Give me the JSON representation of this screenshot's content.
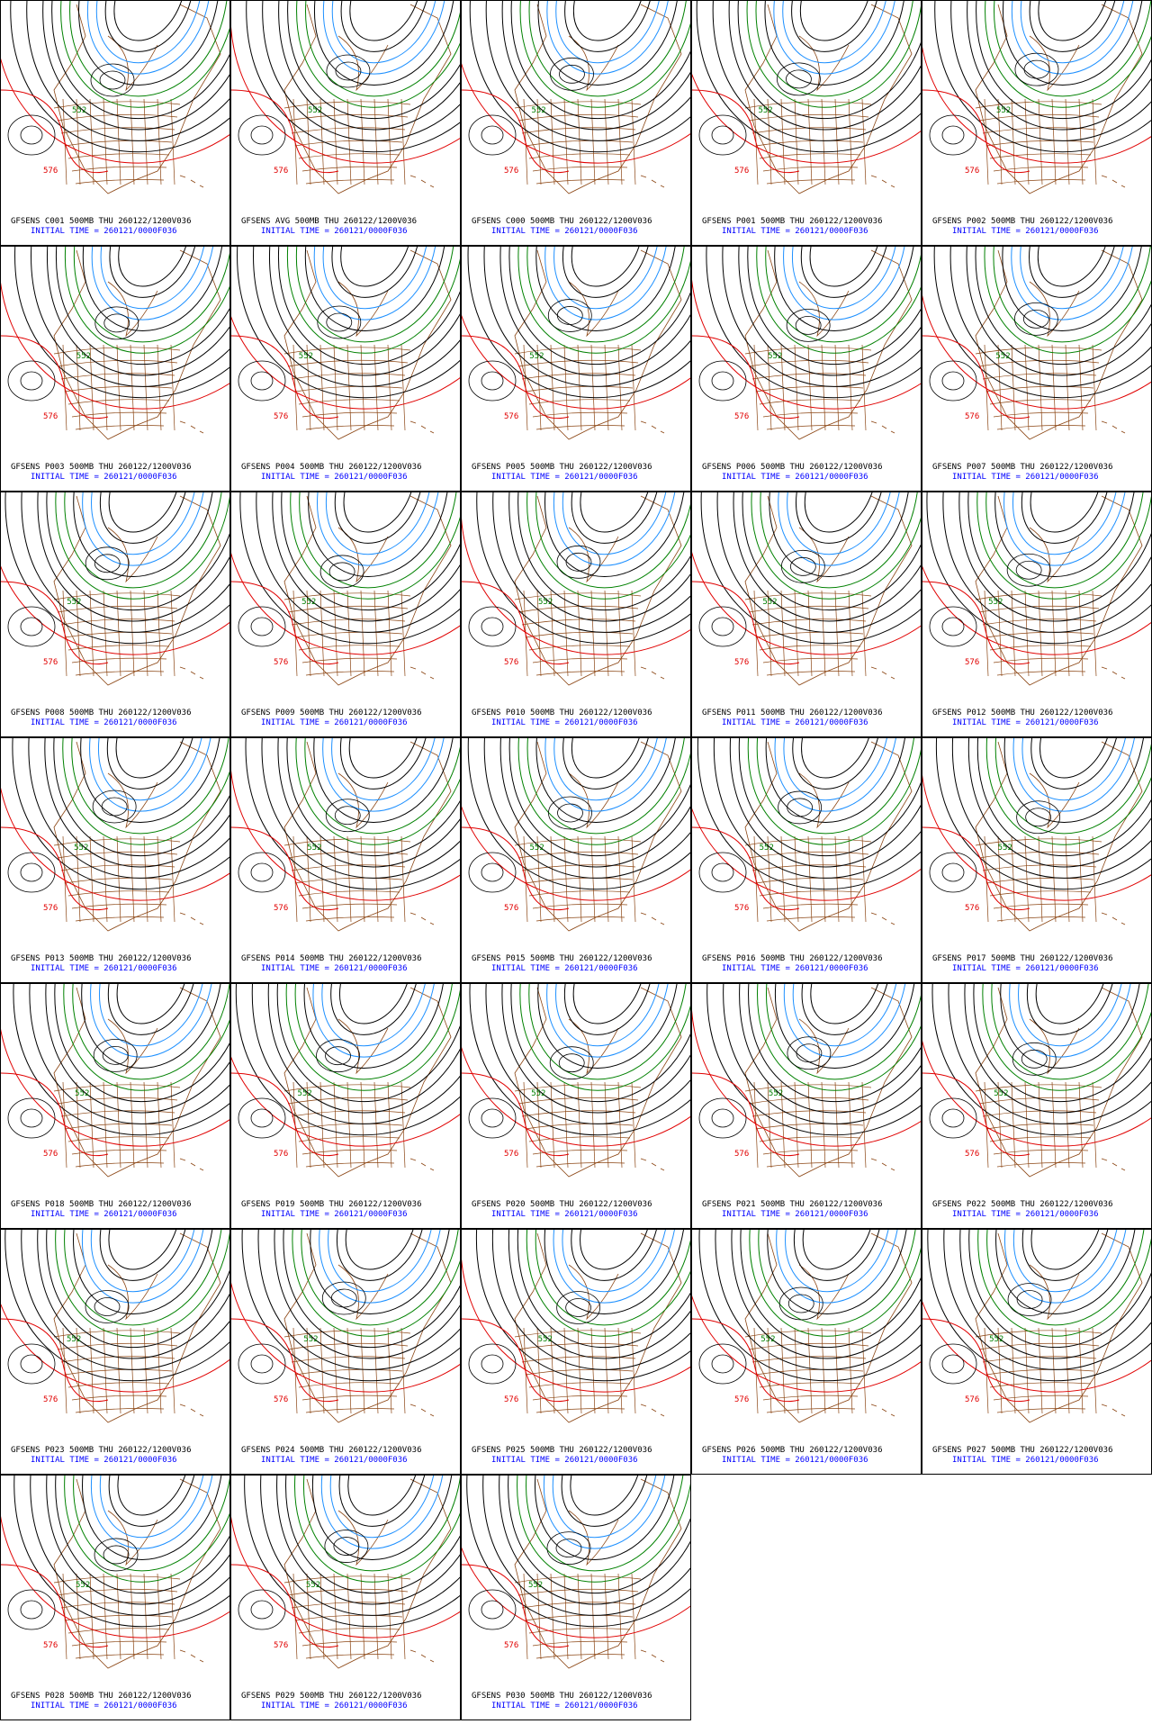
{
  "contour_labels": {
    "red": "576",
    "green": "552"
  },
  "panels": [
    {
      "title": "GFSENS C001 500MB THU 260122/1200V036",
      "init_time": "INITIAL TIME = 260121/0000F036"
    },
    {
      "title": "GFSENS AVG 500MB THU 260122/1200V036",
      "init_time": "INITIAL TIME = 260121/0000F036"
    },
    {
      "title": "GFSENS C000 500MB THU 260122/1200V036",
      "init_time": "INITIAL TIME = 260121/0000F036"
    },
    {
      "title": "GFSENS P001 500MB THU 260122/1200V036",
      "init_time": "INITIAL TIME = 260121/0000F036"
    },
    {
      "title": "GFSENS P002 500MB THU 260122/1200V036",
      "init_time": "INITIAL TIME = 260121/0000F036"
    },
    {
      "title": "GFSENS P003 500MB THU 260122/1200V036",
      "init_time": "INITIAL TIME = 260121/0000F036"
    },
    {
      "title": "GFSENS P004 500MB THU 260122/1200V036",
      "init_time": "INITIAL TIME = 260121/0000F036"
    },
    {
      "title": "GFSENS P005 500MB THU 260122/1200V036",
      "init_time": "INITIAL TIME = 260121/0000F036"
    },
    {
      "title": "GFSENS P006 500MB THU 260122/1200V036",
      "init_time": "INITIAL TIME = 260121/0000F036"
    },
    {
      "title": "GFSENS P007 500MB THU 260122/1200V036",
      "init_time": "INITIAL TIME = 260121/0000F036"
    },
    {
      "title": "GFSENS P008 500MB THU 260122/1200V036",
      "init_time": "INITIAL TIME = 260121/0000F036"
    },
    {
      "title": "GFSENS P009 500MB THU 260122/1200V036",
      "init_time": "INITIAL TIME = 260121/0000F036"
    },
    {
      "title": "GFSENS P010 500MB THU 260122/1200V036",
      "init_time": "INITIAL TIME = 260121/0000F036"
    },
    {
      "title": "GFSENS P011 500MB THU 260122/1200V036",
      "init_time": "INITIAL TIME = 260121/0000F036"
    },
    {
      "title": "GFSENS P012 500MB THU 260122/1200V036",
      "init_time": "INITIAL TIME = 260121/0000F036"
    },
    {
      "title": "GFSENS P013 500MB THU 260122/1200V036",
      "init_time": "INITIAL TIME = 260121/0000F036"
    },
    {
      "title": "GFSENS P014 500MB THU 260122/1200V036",
      "init_time": "INITIAL TIME = 260121/0000F036"
    },
    {
      "title": "GFSENS P015 500MB THU 260122/1200V036",
      "init_time": "INITIAL TIME = 260121/0000F036"
    },
    {
      "title": "GFSENS P016 500MB THU 260122/1200V036",
      "init_time": "INITIAL TIME = 260121/0000F036"
    },
    {
      "title": "GFSENS P017 500MB THU 260122/1200V036",
      "init_time": "INITIAL TIME = 260121/0000F036"
    },
    {
      "title": "GFSENS P018 500MB THU 260122/1200V036",
      "init_time": "INITIAL TIME = 260121/0000F036"
    },
    {
      "title": "GFSENS P019 500MB THU 260122/1200V036",
      "init_time": "INITIAL TIME = 260121/0000F036"
    },
    {
      "title": "GFSENS P020 500MB THU 260122/1200V036",
      "init_time": "INITIAL TIME = 260121/0000F036"
    },
    {
      "title": "GFSENS P021 500MB THU 260122/1200V036",
      "init_time": "INITIAL TIME = 260121/0000F036"
    },
    {
      "title": "GFSENS P022 500MB THU 260122/1200V036",
      "init_time": "INITIAL TIME = 260121/0000F036"
    },
    {
      "title": "GFSENS P023 500MB THU 260122/1200V036",
      "init_time": "INITIAL TIME = 260121/0000F036"
    },
    {
      "title": "GFSENS P024 500MB THU 260122/1200V036",
      "init_time": "INITIAL TIME = 260121/0000F036"
    },
    {
      "title": "GFSENS P025 500MB THU 260122/1200V036",
      "init_time": "INITIAL TIME = 260121/0000F036"
    },
    {
      "title": "GFSENS P026 500MB THU 260122/1200V036",
      "init_time": "INITIAL TIME = 260121/0000F036"
    },
    {
      "title": "GFSENS P027 500MB THU 260122/1200V036",
      "init_time": "INITIAL TIME = 260121/0000F036"
    },
    {
      "title": "GFSENS P028 500MB THU 260122/1200V036",
      "init_time": "INITIAL TIME = 260121/0000F036"
    },
    {
      "title": "GFSENS P029 500MB THU 260122/1200V036",
      "init_time": "INITIAL TIME = 260121/0000F036"
    },
    {
      "title": "GFSENS P030 500MB THU 260122/1200V036",
      "init_time": "INITIAL TIME = 260121/0000F036"
    }
  ]
}
